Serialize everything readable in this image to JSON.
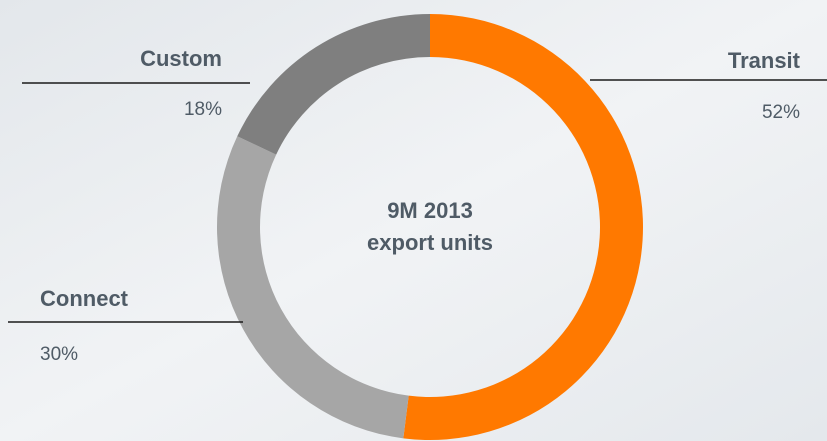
{
  "chart_data": {
    "type": "donut",
    "center_text": [
      "9M 2013",
      "export units"
    ],
    "categories": [
      "Transit",
      "Connect",
      "Custom"
    ],
    "values": [
      52,
      30,
      18
    ],
    "value_labels": [
      "52%",
      "30%",
      "18%"
    ],
    "colors": [
      "#ff7900",
      "#a6a6a6",
      "#7f7f7f"
    ]
  }
}
